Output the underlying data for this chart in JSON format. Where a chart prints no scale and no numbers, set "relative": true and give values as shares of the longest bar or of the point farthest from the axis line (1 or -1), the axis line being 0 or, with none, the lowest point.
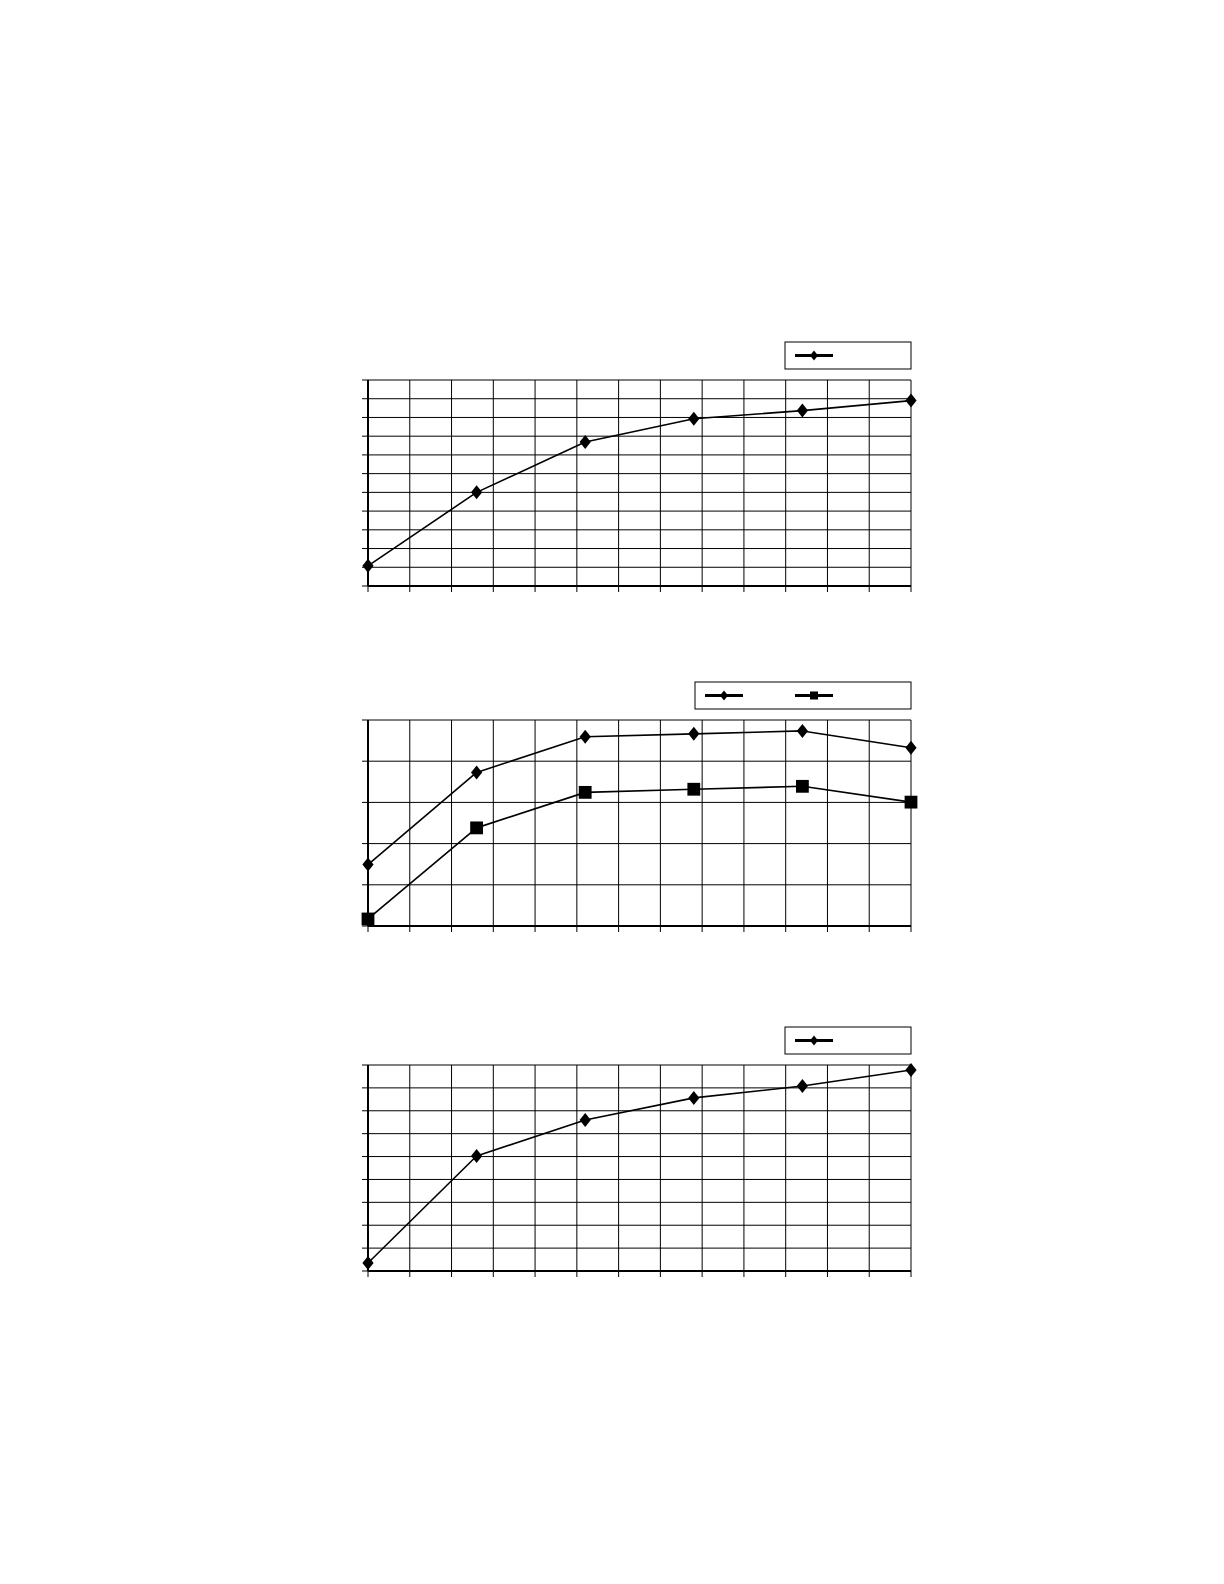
{
  "chart_data": [
    {
      "type": "line",
      "relative": true,
      "categories": [
        null,
        null,
        null,
        null,
        null,
        null
      ],
      "grid": true,
      "series": [
        {
          "color": "#000000",
          "marker": "diamond",
          "values": [
            0.109,
            0.505,
            0.777,
            0.902,
            0.946,
            1
          ]
        }
      ]
    },
    {
      "type": "line",
      "relative": true,
      "categories": [
        null,
        null,
        null,
        null,
        null,
        null
      ],
      "grid": true,
      "series": [
        {
          "color": "#000000",
          "marker": "diamond",
          "values": [
            0.315,
            0.787,
            0.97,
            0.985,
            1,
            0.914
          ]
        },
        {
          "color": "#000000",
          "marker": "square",
          "values": [
            0.036,
            0.503,
            0.685,
            0.701,
            0.716,
            0.635
          ]
        }
      ]
    },
    {
      "type": "line",
      "relative": true,
      "categories": [
        null,
        null,
        null,
        null,
        null,
        null
      ],
      "grid": true,
      "series": [
        {
          "color": "#000000",
          "marker": "diamond",
          "values": [
            0.04,
            0.572,
            0.751,
            0.861,
            0.92,
            1
          ]
        }
      ]
    }
  ]
}
